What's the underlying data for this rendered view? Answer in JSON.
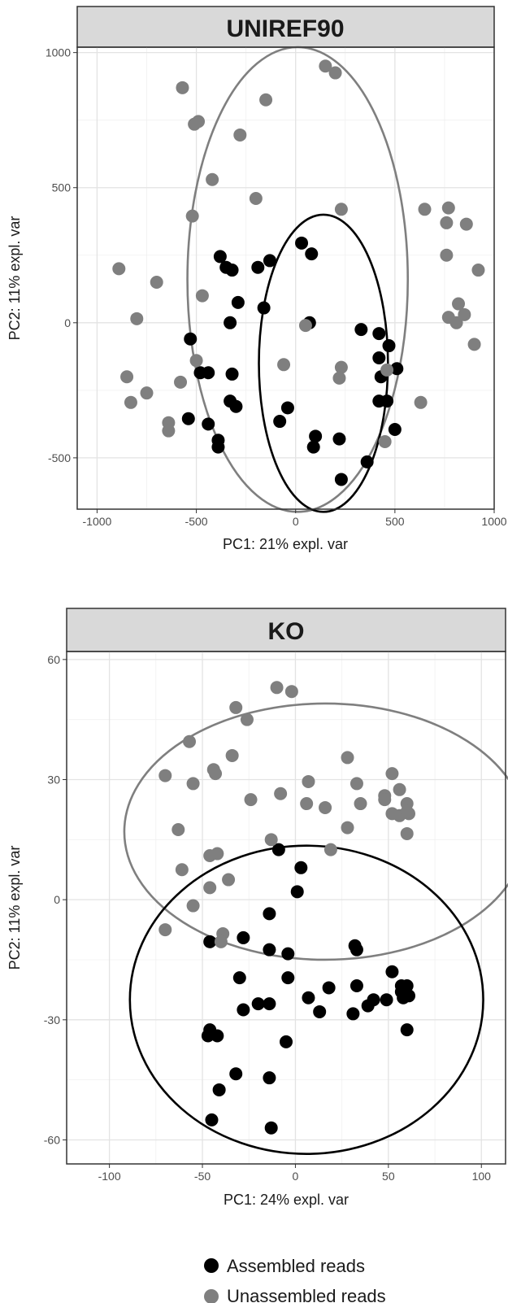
{
  "chart_data": [
    {
      "type": "scatter",
      "title": "UNIREF90",
      "xlabel": "PC1: 21% expl. var",
      "ylabel": "PC2: 11% expl. var",
      "xlim": [
        -1100,
        1000
      ],
      "ylim": [
        -690,
        1020
      ],
      "xticks": [
        -1000,
        -500,
        0,
        500,
        1000
      ],
      "yticks": [
        -500,
        0,
        500,
        1000
      ],
      "grid": true,
      "series": [
        {
          "name": "Assembled reads",
          "color": "#000000",
          "points": [
            [
              30,
              295
            ],
            [
              80,
              255
            ],
            [
              -380,
              245
            ],
            [
              -350,
              205
            ],
            [
              -320,
              195
            ],
            [
              -190,
              205
            ],
            [
              -130,
              230
            ],
            [
              -290,
              75
            ],
            [
              -160,
              55
            ],
            [
              -330,
              0
            ],
            [
              70,
              0
            ],
            [
              330,
              -25
            ],
            [
              420,
              -40
            ],
            [
              470,
              -85
            ],
            [
              420,
              -130
            ],
            [
              -530,
              -60
            ],
            [
              -480,
              -185
            ],
            [
              -440,
              -185
            ],
            [
              -320,
              -190
            ],
            [
              430,
              -200
            ],
            [
              510,
              -170
            ],
            [
              -330,
              -290
            ],
            [
              -300,
              -310
            ],
            [
              420,
              -290
            ],
            [
              460,
              -290
            ],
            [
              -40,
              -315
            ],
            [
              -80,
              -365
            ],
            [
              500,
              -395
            ],
            [
              -540,
              -355
            ],
            [
              -440,
              -375
            ],
            [
              100,
              -420
            ],
            [
              220,
              -430
            ],
            [
              -390,
              -435
            ],
            [
              -390,
              -460
            ],
            [
              90,
              -460
            ],
            [
              360,
              -515
            ],
            [
              230,
              -580
            ]
          ]
        },
        {
          "name": "Unassembled reads",
          "color": "#7f7f7f",
          "points": [
            [
              150,
              950
            ],
            [
              200,
              925
            ],
            [
              -570,
              870
            ],
            [
              -150,
              825
            ],
            [
              -490,
              745
            ],
            [
              -510,
              735
            ],
            [
              -280,
              695
            ],
            [
              -420,
              530
            ],
            [
              -200,
              460
            ],
            [
              230,
              420
            ],
            [
              -520,
              395
            ],
            [
              650,
              420
            ],
            [
              770,
              425
            ],
            [
              760,
              370
            ],
            [
              860,
              365
            ],
            [
              760,
              250
            ],
            [
              920,
              195
            ],
            [
              -890,
              200
            ],
            [
              -700,
              150
            ],
            [
              -470,
              100
            ],
            [
              -800,
              15
            ],
            [
              820,
              70
            ],
            [
              770,
              20
            ],
            [
              810,
              0
            ],
            [
              850,
              30
            ],
            [
              900,
              -80
            ],
            [
              50,
              -10
            ],
            [
              -500,
              -140
            ],
            [
              -60,
              -155
            ],
            [
              230,
              -165
            ],
            [
              460,
              -175
            ],
            [
              -850,
              -200
            ],
            [
              220,
              -205
            ],
            [
              -580,
              -220
            ],
            [
              -750,
              -260
            ],
            [
              630,
              -295
            ],
            [
              -830,
              -295
            ],
            [
              -640,
              -370
            ],
            [
              -640,
              -400
            ],
            [
              450,
              -440
            ]
          ]
        }
      ],
      "ellipses": [
        {
          "series": "Unassembled reads",
          "cx": 10,
          "cy": 160,
          "rx": 1110,
          "ry": 1720,
          "angle": 0
        },
        {
          "series": "Assembled reads",
          "cx": 140,
          "cy": -150,
          "rx": 650,
          "ry": 1100,
          "angle": 0
        }
      ]
    },
    {
      "type": "scatter",
      "title": "KO",
      "xlabel": "PC1: 24% expl. var",
      "ylabel": "PC2: 11% expl. var",
      "xlim": [
        -123,
        113
      ],
      "ylim": [
        -66,
        62
      ],
      "xticks": [
        -100,
        -50,
        0,
        50,
        100
      ],
      "yticks": [
        -60,
        -30,
        0,
        30,
        60
      ],
      "grid": true,
      "series": [
        {
          "name": "Assembled reads",
          "color": "#000000",
          "points": [
            [
              -9,
              12.5
            ],
            [
              3,
              8
            ],
            [
              1,
              2
            ],
            [
              -14,
              -3.5
            ],
            [
              -46,
              -10.5
            ],
            [
              -28,
              -9.5
            ],
            [
              -4,
              -13.5
            ],
            [
              -14,
              -12.5
            ],
            [
              32,
              -11.5
            ],
            [
              33,
              -12.5
            ],
            [
              -30,
              -19.5
            ],
            [
              -20,
              -26
            ],
            [
              -28,
              -27.5
            ],
            [
              -14,
              -26
            ],
            [
              -4,
              -19.5
            ],
            [
              7,
              -24.5
            ],
            [
              13,
              -28
            ],
            [
              18,
              -22
            ],
            [
              31,
              -28.5
            ],
            [
              33,
              -21.5
            ],
            [
              39,
              -26.5
            ],
            [
              42,
              -25
            ],
            [
              49,
              -25
            ],
            [
              52,
              -18
            ],
            [
              57,
              -21.5
            ],
            [
              57,
              -23
            ],
            [
              60,
              -21.5
            ],
            [
              58,
              -24.5
            ],
            [
              61,
              -24
            ],
            [
              60,
              -32.5
            ],
            [
              -46,
              -32.5
            ],
            [
              -47,
              -34
            ],
            [
              -42,
              -34
            ],
            [
              -5,
              -35.5
            ],
            [
              -32,
              -43.5
            ],
            [
              -14,
              -44.5
            ],
            [
              -41,
              -47.5
            ],
            [
              -45,
              -55
            ],
            [
              -13,
              -57
            ]
          ]
        },
        {
          "name": "Unassembled reads",
          "color": "#7f7f7f",
          "points": [
            [
              -10,
              53
            ],
            [
              -2,
              52
            ],
            [
              -32,
              48
            ],
            [
              -26,
              45
            ],
            [
              -57,
              39.5
            ],
            [
              -34,
              36
            ],
            [
              -70,
              31
            ],
            [
              -55,
              29
            ],
            [
              -44,
              32.5
            ],
            [
              -43,
              31.5
            ],
            [
              -24,
              25
            ],
            [
              -8,
              26.5
            ],
            [
              7,
              29.5
            ],
            [
              6,
              24
            ],
            [
              16,
              23
            ],
            [
              28,
              35.5
            ],
            [
              33,
              29
            ],
            [
              35,
              24
            ],
            [
              48,
              26
            ],
            [
              48,
              25
            ],
            [
              52,
              31.5
            ],
            [
              56,
              27.5
            ],
            [
              60,
              24
            ],
            [
              52,
              21.5
            ],
            [
              56,
              21
            ],
            [
              61,
              21.5
            ],
            [
              60,
              22
            ],
            [
              60,
              16.5
            ],
            [
              28,
              18
            ],
            [
              -63,
              17.5
            ],
            [
              -13,
              15
            ],
            [
              19,
              12.5
            ],
            [
              -46,
              11
            ],
            [
              -42,
              11.5
            ],
            [
              -61,
              7.5
            ],
            [
              -36,
              5
            ],
            [
              -46,
              3
            ],
            [
              -55,
              -1.5
            ],
            [
              -70,
              -7.5
            ],
            [
              -39,
              -8.5
            ],
            [
              -40,
              -10.5
            ]
          ]
        }
      ],
      "ellipses": [
        {
          "series": "Unassembled reads",
          "cx": 16,
          "cy": 17,
          "rx": 216,
          "ry": 64,
          "angle": 0
        },
        {
          "series": "Assembled reads",
          "cx": 6,
          "cy": -25,
          "rx": 190,
          "ry": 77,
          "angle": 0
        }
      ]
    }
  ],
  "legend": [
    {
      "label": "Assembled reads",
      "color": "#000000"
    },
    {
      "label": "Unassembled reads",
      "color": "#7f7f7f"
    }
  ]
}
